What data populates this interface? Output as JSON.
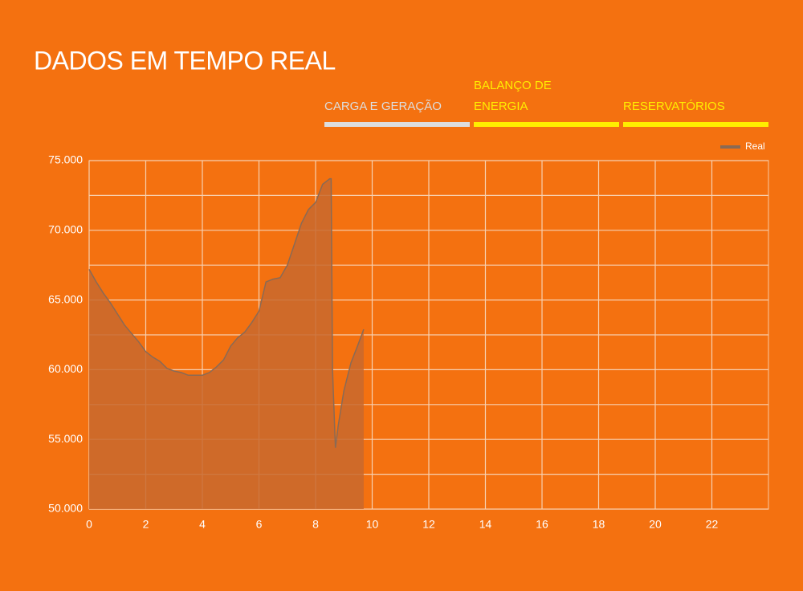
{
  "header": {
    "title": "DADOS EM TEMPO REAL"
  },
  "tabs": [
    {
      "label": "CARGA E GERAÇÃO",
      "color": "#dddddd"
    },
    {
      "label": "BALANÇO DE ENERGIA",
      "color": "#ffee00"
    },
    {
      "label": "RESERVATÓRIOS",
      "color": "#ffee00"
    }
  ],
  "chart_data": {
    "type": "area",
    "x": [
      0,
      0.25,
      0.5,
      0.75,
      1,
      1.25,
      1.5,
      1.75,
      2,
      2.25,
      2.5,
      2.75,
      3,
      3.25,
      3.5,
      3.75,
      4,
      4.25,
      4.5,
      4.75,
      5,
      5.25,
      5.5,
      5.75,
      6,
      6.25,
      6.5,
      6.75,
      7,
      7.25,
      7.5,
      7.75,
      8,
      8.25,
      8.5,
      8.55,
      8.6,
      8.7,
      8.8,
      9,
      9.25,
      9.5,
      9.7
    ],
    "series": [
      {
        "name": "Real",
        "color": "#8a6a55",
        "fill": "#c8692e",
        "values": [
          67200,
          66300,
          65500,
          64800,
          64000,
          63200,
          62600,
          62000,
          61300,
          60900,
          60600,
          60100,
          59900,
          59800,
          59600,
          59600,
          59600,
          59800,
          60200,
          60700,
          61700,
          62300,
          62700,
          63400,
          64200,
          66300,
          66500,
          66600,
          67500,
          69000,
          70500,
          71500,
          72000,
          73300,
          73700,
          73700,
          60000,
          54400,
          56000,
          58500,
          60500,
          61800,
          62900
        ]
      }
    ],
    "xlim": [
      0,
      24
    ],
    "xticks": [
      0,
      2,
      4,
      6,
      8,
      10,
      12,
      14,
      16,
      18,
      20,
      22
    ],
    "ylim": [
      50000,
      75000
    ],
    "yticks": [
      {
        "value": 50000,
        "label": "50.000"
      },
      {
        "value": 55000,
        "label": "55.000"
      },
      {
        "value": 60000,
        "label": "60.000"
      },
      {
        "value": 65000,
        "label": "65.000"
      },
      {
        "value": 70000,
        "label": "70.000"
      },
      {
        "value": 75000,
        "label": "75.000"
      }
    ],
    "y_gridlines": [
      52500,
      57500,
      62500,
      67500,
      72500
    ],
    "grid": true,
    "legend": "top-right"
  }
}
